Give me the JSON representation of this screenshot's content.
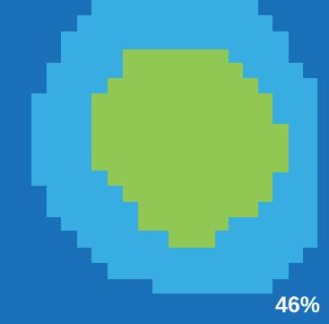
{
  "progress": {
    "value": 0.46,
    "label": "46%"
  },
  "colors": {
    "background": "#1a6fb9",
    "outer_ring": "#38ade2",
    "inner_fill": "#91c853",
    "text": "#ffffff"
  }
}
